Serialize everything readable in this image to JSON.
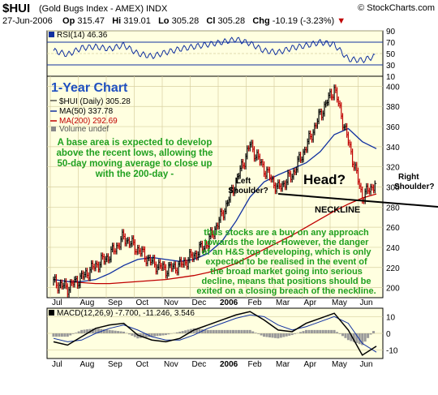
{
  "header": {
    "symbol": "$HUI",
    "description": "(Gold Bugs Index - AMEX) INDX",
    "brand": "© StockCharts.com",
    "date": "27-Jun-2006",
    "open_label": "Op",
    "open": "315.47",
    "high_label": "Hi",
    "high": "319.01",
    "low_label": "Lo",
    "low": "305.28",
    "close_label": "Cl",
    "close": "305.28",
    "change_label": "Chg",
    "change": "-10.19 (-3.23%)",
    "change_marker": "▼"
  },
  "colors": {
    "panel_bg": "#ffffe0",
    "grid": "#d8d0a0",
    "price": "#000000",
    "down_bar": "#c00000",
    "ma50": "#1030a0",
    "ma200": "#c00000",
    "annotation_text": "#20a020",
    "title_blue": "#2050c0"
  },
  "rsi_panel": {
    "legend": "RSI(14) 46.36",
    "ticks": [
      "90",
      "70",
      "50",
      "30",
      "10"
    ]
  },
  "price_panel": {
    "title": "1-Year Chart",
    "legend": [
      {
        "text": "$HUI (Daily) 305.28",
        "color": "#000000"
      },
      {
        "text": "MA(50) 337.78",
        "color": "#1030a0"
      },
      {
        "text": "MA(200) 292.69",
        "color": "#c00000"
      },
      {
        "text": "Volume undef",
        "color": "#555555"
      }
    ],
    "ticks": [
      "400",
      "380",
      "360",
      "340",
      "320",
      "300",
      "280",
      "260",
      "240",
      "220",
      "200"
    ],
    "annotations": {
      "base": [
        "A base area is expected to develop",
        "above the recent lows, allowing the",
        "50-day moving average to close up",
        "with the 200-day -"
      ],
      "left_shoulder": [
        "Left",
        "Shoulder?"
      ],
      "head": "Head?",
      "right_shoulder": [
        "Right",
        "Shoulder?"
      ],
      "neckline": "NECKLINE",
      "comment": [
        "thus stocks are a buy on any approach",
        "towards the lows. However, the danger",
        "of an H&S top developing, which is only",
        "expected to be realised in the event of",
        "the broad market going into serious",
        "decline, means that positions should be",
        "exited on a closing breach of the neckline."
      ]
    }
  },
  "macd_panel": {
    "legend": "MACD(12,26,9) -7.700, -11.246, 3.546",
    "ticks": [
      "10",
      "0",
      "-10"
    ]
  },
  "axis": {
    "middle_months": [
      "Jul",
      "Aug",
      "Sep",
      "Oct",
      "Nov",
      "Dec",
      "2006",
      "Feb",
      "Mar",
      "Apr",
      "May",
      "Jun"
    ],
    "bottom_months": [
      "Jul",
      "Aug",
      "Sep",
      "Oct",
      "Nov",
      "Dec",
      "2006",
      "Feb",
      "Mar",
      "Apr",
      "May",
      "Jun"
    ]
  },
  "chart_data": {
    "type": "line",
    "title": "1-Year Chart",
    "x": [
      "Jul",
      "Jul",
      "Aug",
      "Aug",
      "Sep",
      "Sep",
      "Oct",
      "Oct",
      "Nov",
      "Nov",
      "Dec",
      "Dec",
      "Jan",
      "Jan",
      "Feb",
      "Feb",
      "Mar",
      "Mar",
      "Apr",
      "Apr",
      "May",
      "May",
      "Jun",
      "Jun"
    ],
    "series": [
      {
        "name": "$HUI (Daily)",
        "values": [
          205,
          200,
          210,
          222,
          232,
          250,
          238,
          225,
          218,
          222,
          232,
          245,
          272,
          305,
          342,
          318,
          298,
          312,
          340,
          372,
          398,
          345,
          290,
          305
        ]
      },
      {
        "name": "MA(50)",
        "values": [
          208,
          206,
          206,
          208,
          214,
          222,
          228,
          230,
          228,
          226,
          228,
          234,
          246,
          266,
          290,
          305,
          312,
          318,
          324,
          335,
          352,
          358,
          345,
          338
        ]
      },
      {
        "name": "MA(200)",
        "values": [
          208,
          206,
          205,
          204,
          204,
          205,
          206,
          207,
          208,
          210,
          212,
          215,
          219,
          224,
          231,
          238,
          245,
          252,
          260,
          268,
          276,
          283,
          289,
          293
        ]
      }
    ],
    "ylim": [
      190,
      410
    ],
    "rsi": {
      "name": "RSI(14)",
      "values": [
        55,
        48,
        60,
        62,
        58,
        65,
        50,
        45,
        52,
        58,
        62,
        66,
        70,
        75,
        68,
        55,
        52,
        60,
        64,
        70,
        66,
        40,
        38,
        46
      ],
      "ylim": [
        10,
        90
      ]
    },
    "macd": {
      "macd_values": [
        -5,
        -7,
        -2,
        3,
        5,
        6,
        -1,
        -4,
        -5,
        -3,
        2,
        5,
        8,
        11,
        13,
        8,
        2,
        1,
        6,
        9,
        12,
        2,
        -13,
        -7.7
      ],
      "signal_values": [
        -3,
        -5,
        -4,
        0,
        3,
        5,
        2,
        -2,
        -4,
        -4,
        -1,
        3,
        6,
        9,
        11,
        10,
        5,
        2,
        4,
        7,
        10,
        6,
        -6,
        -11.2
      ],
      "histogram_values": [
        -2,
        -2,
        2,
        3,
        2,
        1,
        -3,
        -2,
        -1,
        1,
        3,
        2,
        2,
        2,
        2,
        -2,
        -3,
        -1,
        2,
        2,
        2,
        -4,
        -7,
        3.5
      ],
      "ylim": [
        -15,
        15
      ]
    },
    "legend": [
      "$HUI (Daily) 305.28",
      "MA(50) 337.78",
      "MA(200) 292.69",
      "Volume undef"
    ],
    "grid": true,
    "legend_position": "top-left"
  }
}
